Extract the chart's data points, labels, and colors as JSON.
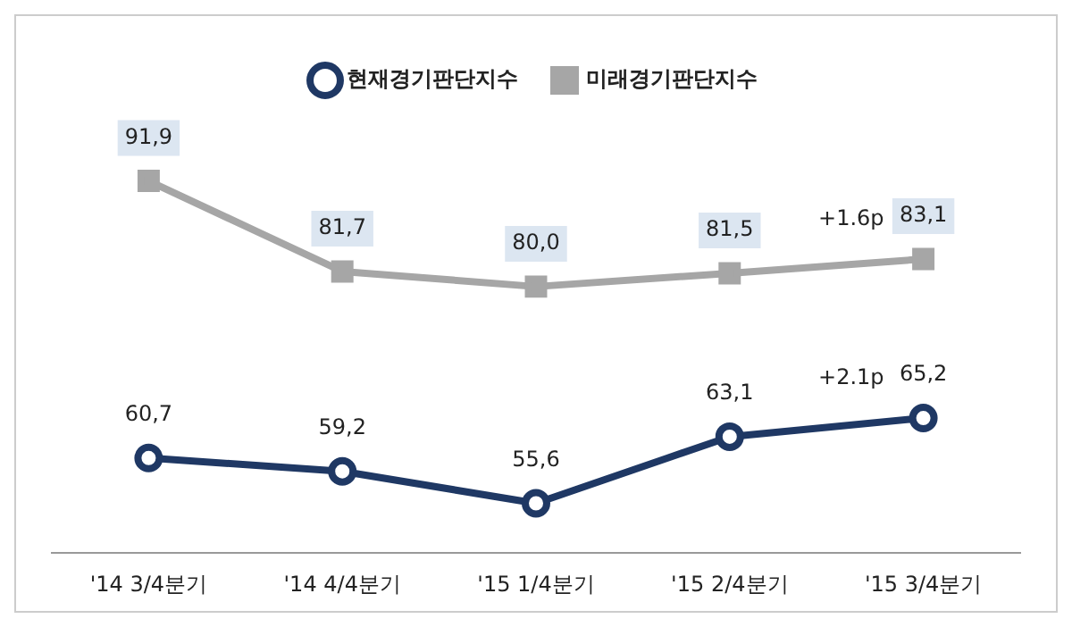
{
  "chart_data": {
    "type": "line",
    "categories": [
      "'14 3/4분기",
      "'14 4/4분기",
      "'15 1/4분기",
      "'15 2/4분기",
      "'15 3/4분기"
    ],
    "series": [
      {
        "name": "현재경기판단지수",
        "color": "#1f3864",
        "values": [
          60.7,
          59.2,
          55.6,
          63.1,
          65.2
        ],
        "value_labels": [
          "60,7",
          "59,2",
          "55,6",
          "63,1",
          "65,2"
        ],
        "marker": "circle"
      },
      {
        "name": "미래경기판단지수",
        "color": "#a6a6a6",
        "values": [
          91.9,
          81.7,
          80.0,
          81.5,
          83.1
        ],
        "value_labels": [
          "91,9",
          "81,7",
          "80,0",
          "81,5",
          "83,1"
        ],
        "marker": "square"
      }
    ],
    "annotations": [
      {
        "text": "+2.1p",
        "x": "'15 3/4분기",
        "y": 65.2
      },
      {
        "text": "+1.6p",
        "x": "'15 3/4분기",
        "y": 83.1
      }
    ],
    "tick_labels": "x",
    "grid": false,
    "legend": "top"
  }
}
